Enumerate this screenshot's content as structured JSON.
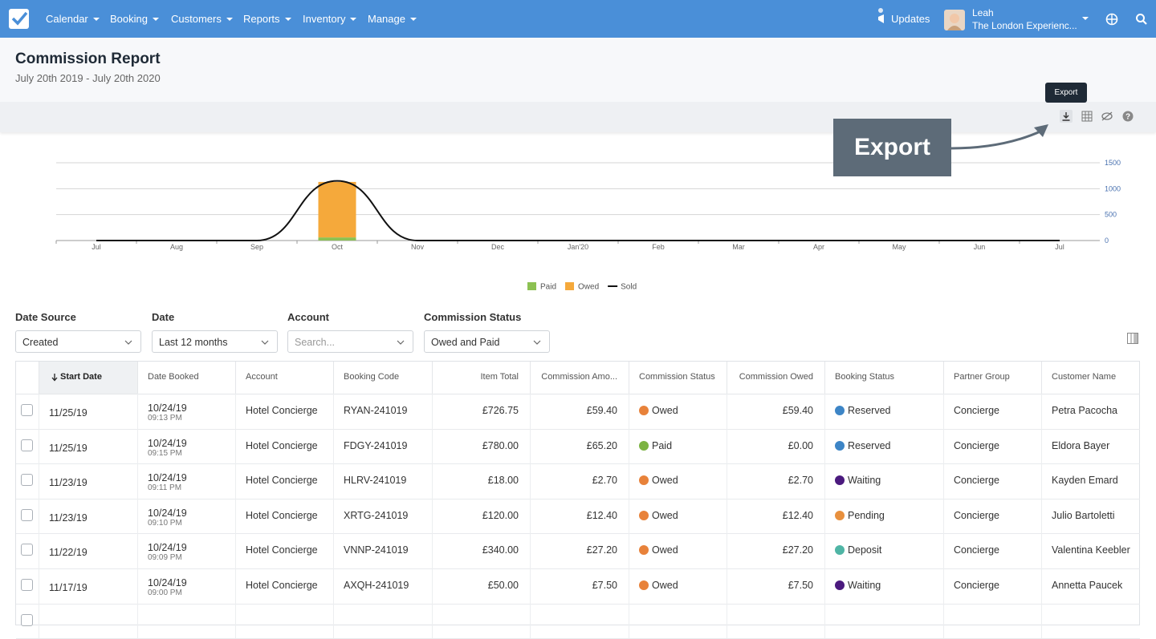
{
  "nav": {
    "items": [
      "Calendar",
      "Booking",
      "Customers",
      "Reports",
      "Inventory",
      "Manage"
    ],
    "updates": "Updates",
    "user_name": "Leah",
    "company": "The London Experienc..."
  },
  "header": {
    "title": "Commission Report",
    "subtitle": "July 20th 2019 - July 20th 2020"
  },
  "toolbar": {
    "tooltip": "Export"
  },
  "callout": {
    "text": "Export"
  },
  "chart_data": {
    "type": "bar",
    "categories": [
      "Jul",
      "Aug",
      "Sep",
      "Oct",
      "Nov",
      "Dec",
      "Jan'20",
      "Feb",
      "Mar",
      "Apr",
      "May",
      "Jun",
      "Jul"
    ],
    "series": [
      {
        "name": "Paid",
        "color": "#8cc152",
        "values": [
          0,
          0,
          0,
          60,
          0,
          0,
          0,
          0,
          0,
          0,
          0,
          0,
          0
        ]
      },
      {
        "name": "Owed",
        "color": "#f5a93b",
        "values": [
          0,
          0,
          0,
          1070,
          0,
          0,
          0,
          0,
          0,
          0,
          0,
          0,
          0
        ]
      },
      {
        "name": "Sold",
        "type": "line",
        "color": "#111111",
        "values": [
          0,
          0,
          0,
          1150,
          0,
          0,
          0,
          0,
          0,
          0,
          0,
          0,
          0
        ]
      }
    ],
    "stacked": true,
    "ylim": [
      0,
      1500
    ],
    "yticks": [
      0,
      500,
      1000,
      1500
    ],
    "grid": true,
    "legend": "bottom"
  },
  "filters": [
    {
      "label": "Date Source",
      "value": "Created"
    },
    {
      "label": "Date",
      "value": "Last 12 months"
    },
    {
      "label": "Account",
      "placeholder": "Search..."
    },
    {
      "label": "Commission Status",
      "value": "Owed and Paid"
    }
  ],
  "table": {
    "columns": [
      "Start Date",
      "Date Booked",
      "Account",
      "Booking Code",
      "Item Total",
      "Commission Amo...",
      "Commission Status",
      "Commission Owed",
      "Booking Status",
      "Partner Group",
      "Customer Name"
    ],
    "status_colors": {
      "Owed": "#e8823a",
      "Paid": "#7cb342",
      "Reserved": "#3d85c6",
      "Waiting": "#4b1a7e",
      "Pending": "#e8903e",
      "Deposit": "#4fb5a5"
    },
    "rows": [
      [
        "11/25/19",
        "10/24/19",
        "09:13 PM",
        "Hotel Concierge",
        "RYAN-241019",
        "£726.75",
        "£59.40",
        "Owed",
        "£59.40",
        "Reserved",
        "Concierge",
        "Petra Pacocha"
      ],
      [
        "11/25/19",
        "10/24/19",
        "09:15 PM",
        "Hotel Concierge",
        "FDGY-241019",
        "£780.00",
        "£65.20",
        "Paid",
        "£0.00",
        "Reserved",
        "Concierge",
        "Eldora Bayer"
      ],
      [
        "11/23/19",
        "10/24/19",
        "09:11 PM",
        "Hotel Concierge",
        "HLRV-241019",
        "£18.00",
        "£2.70",
        "Owed",
        "£2.70",
        "Waiting",
        "Concierge",
        "Kayden Emard"
      ],
      [
        "11/23/19",
        "10/24/19",
        "09:10 PM",
        "Hotel Concierge",
        "XRTG-241019",
        "£120.00",
        "£12.40",
        "Owed",
        "£12.40",
        "Pending",
        "Concierge",
        "Julio Bartoletti"
      ],
      [
        "11/22/19",
        "10/24/19",
        "09:09 PM",
        "Hotel Concierge",
        "VNNP-241019",
        "£340.00",
        "£27.20",
        "Owed",
        "£27.20",
        "Deposit",
        "Concierge",
        "Valentina Keebler"
      ],
      [
        "11/17/19",
        "10/24/19",
        "09:00 PM",
        "Hotel Concierge",
        "AXQH-241019",
        "£50.00",
        "£7.50",
        "Owed",
        "£7.50",
        "Waiting",
        "Concierge",
        "Annetta Paucek"
      ]
    ]
  }
}
